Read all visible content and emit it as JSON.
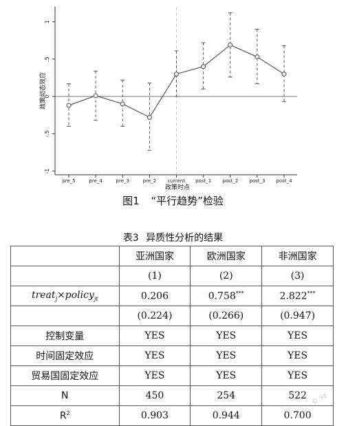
{
  "chart_data": {
    "type": "line",
    "ylabel": "政策动态效应",
    "xlabel": "政策时点",
    "categories": [
      "pre_5",
      "pre_4",
      "pre_3",
      "pre_2",
      "current",
      "post_1",
      "post_2",
      "post_3",
      "post_4"
    ],
    "values": [
      -0.12,
      0.01,
      -0.1,
      -0.28,
      0.3,
      0.4,
      0.69,
      0.53,
      0.3
    ],
    "ci_lower": [
      -0.4,
      -0.32,
      -0.4,
      -0.72,
      0.0,
      0.1,
      0.26,
      0.17,
      -0.07
    ],
    "ci_upper": [
      0.17,
      0.34,
      0.22,
      0.18,
      0.61,
      0.72,
      1.12,
      0.9,
      0.68
    ],
    "ylim": [
      -1.05,
      1.2
    ],
    "yticks": [
      -1,
      -0.5,
      0,
      0.5,
      1
    ],
    "ytick_labels": [
      "-1",
      "-.5",
      "0",
      ".5",
      "1"
    ],
    "reference_line_y": 0,
    "reference_line_x": "current",
    "colors": {
      "line": "#555555",
      "axis": "#333333",
      "ref_h": "#444444",
      "ref_v": "#bbbbbb"
    }
  },
  "figure_caption": {
    "number": "图1",
    "title": "“平行趋势”检验"
  },
  "table": {
    "title_number": "表3",
    "title_text": "异质性分析的结果",
    "header": [
      "",
      "亚洲国家",
      "欧洲国家",
      "非洲国家"
    ],
    "col_numbers": [
      "(1)",
      "(2)",
      "(3)"
    ],
    "coef_row": {
      "var_base": "treat",
      "var_sub1": "j",
      "var_mid": "×policy",
      "var_sub2": "jt",
      "values": [
        "0.206",
        "0.758",
        "2.822"
      ],
      "stars": [
        "",
        "***",
        "***"
      ]
    },
    "se_row": [
      "(0.224)",
      "(0.266)",
      "(0.947)"
    ],
    "rows": [
      {
        "label": "控制变量",
        "values": [
          "YES",
          "YES",
          "YES"
        ]
      },
      {
        "label": "时间固定效应",
        "values": [
          "YES",
          "YES",
          "YES"
        ]
      },
      {
        "label": "贸易国固定效应",
        "values": [
          "YES",
          "YES",
          "YES"
        ]
      },
      {
        "label": "N",
        "values": [
          "450",
          "254",
          "522"
        ]
      }
    ],
    "r2_row": {
      "label_base": "R",
      "label_sup": "2",
      "values": [
        "0.903",
        "0.944",
        "0.700"
      ]
    }
  },
  "watermark": "© sy"
}
